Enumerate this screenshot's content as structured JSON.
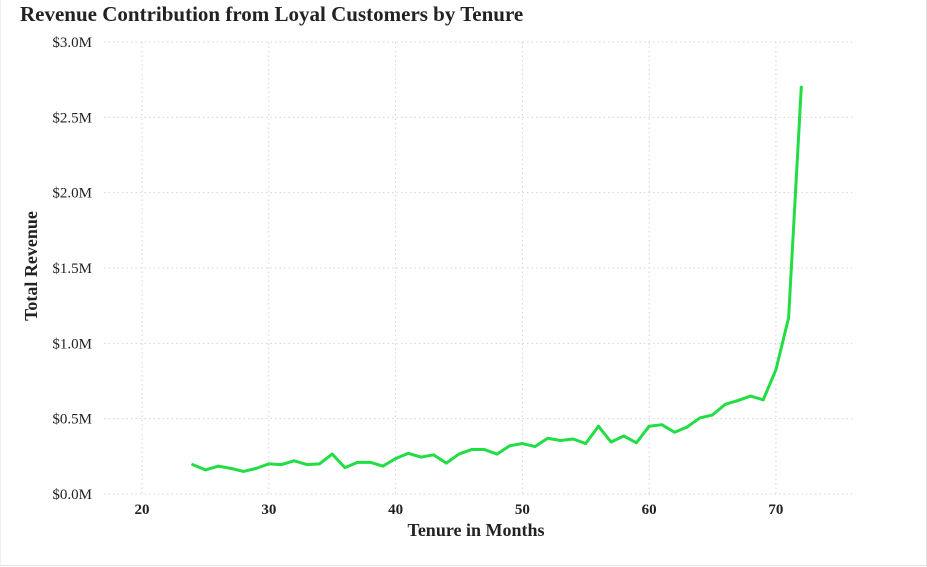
{
  "chart_data": {
    "type": "line",
    "title": "Revenue Contribution from Loyal Customers by Tenure",
    "xlabel": "Tenure in Months",
    "ylabel": "Total Revenue",
    "xlim": [
      17,
      76
    ],
    "ylim": [
      0,
      3000000
    ],
    "x_ticks": [
      20,
      30,
      40,
      50,
      60,
      70
    ],
    "x_tick_labels": [
      "20",
      "30",
      "40",
      "50",
      "60",
      "70"
    ],
    "y_ticks": [
      0,
      500000,
      1000000,
      1500000,
      2000000,
      2500000,
      3000000
    ],
    "y_tick_labels": [
      "$0.0M",
      "$0.5M",
      "$1.0M",
      "$1.5M",
      "$2.0M",
      "$2.5M",
      "$3.0M"
    ],
    "grid": true,
    "legend": "none",
    "series": [
      {
        "color": "#22dd44",
        "x": [
          24,
          25,
          26,
          27,
          28,
          29,
          30,
          31,
          32,
          33,
          34,
          35,
          36,
          37,
          38,
          39,
          40,
          41,
          42,
          43,
          44,
          45,
          46,
          47,
          48,
          49,
          50,
          51,
          52,
          53,
          54,
          55,
          56,
          57,
          58,
          59,
          60,
          61,
          62,
          63,
          64,
          65,
          66,
          67,
          68,
          69,
          70,
          71,
          72
        ],
        "values": [
          195000,
          160000,
          185000,
          170000,
          150000,
          170000,
          200000,
          195000,
          220000,
          195000,
          200000,
          265000,
          175000,
          210000,
          210000,
          185000,
          235000,
          270000,
          245000,
          260000,
          205000,
          265000,
          295000,
          295000,
          265000,
          320000,
          335000,
          315000,
          370000,
          355000,
          365000,
          335000,
          450000,
          345000,
          385000,
          340000,
          450000,
          460000,
          410000,
          445000,
          505000,
          525000,
          595000,
          620000,
          650000,
          625000,
          825000,
          1170000,
          2700000
        ]
      }
    ]
  }
}
